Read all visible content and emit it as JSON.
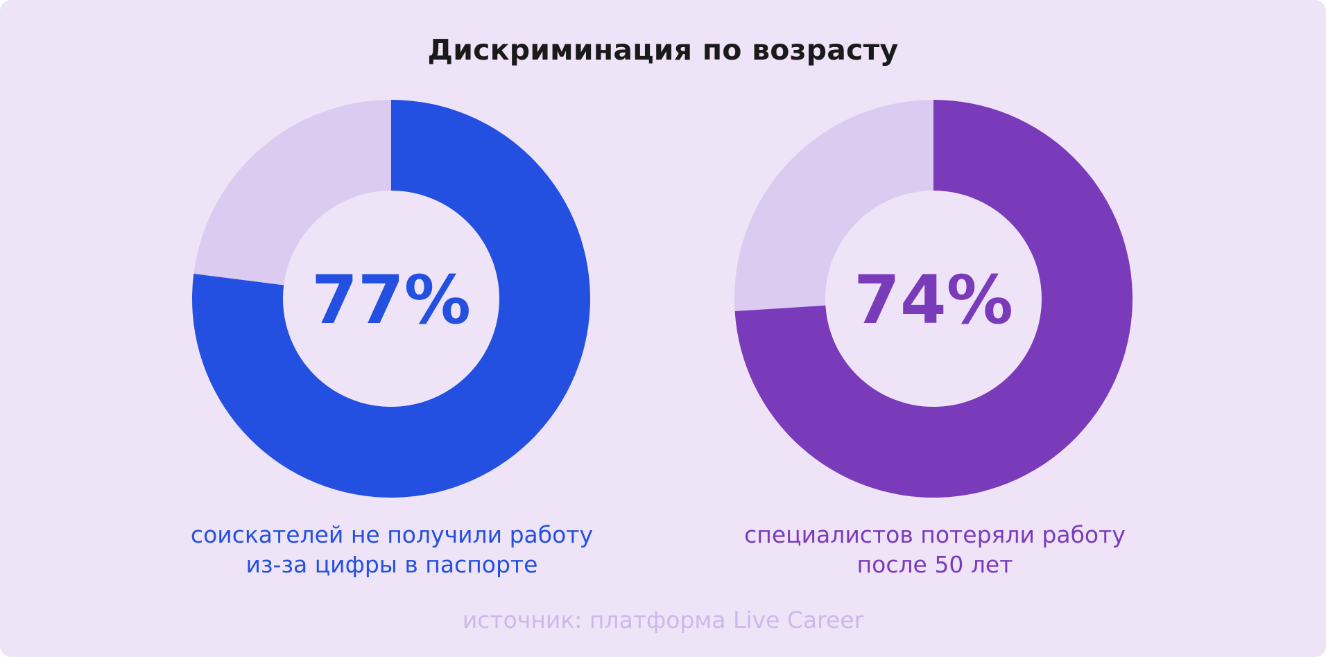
{
  "title": "Дискриминация по возрасту",
  "chart_data": [
    {
      "type": "pie",
      "variant": "donut",
      "value": 77,
      "remainder": 23,
      "label": "77%",
      "caption_lines": [
        "соискателей не получили работу",
        "из-за цифры в паспорте"
      ],
      "color": "#2350e0",
      "track_color": "#dccbf1"
    },
    {
      "type": "pie",
      "variant": "donut",
      "value": 74,
      "remainder": 26,
      "label": "74%",
      "caption_lines": [
        "специалистов потеряли работу",
        "после 50 лет"
      ],
      "color": "#7a3bbb",
      "track_color": "#dccbf1"
    }
  ],
  "source": "источник: платформа Live Career",
  "colors": {
    "background": "#efe4f7"
  }
}
